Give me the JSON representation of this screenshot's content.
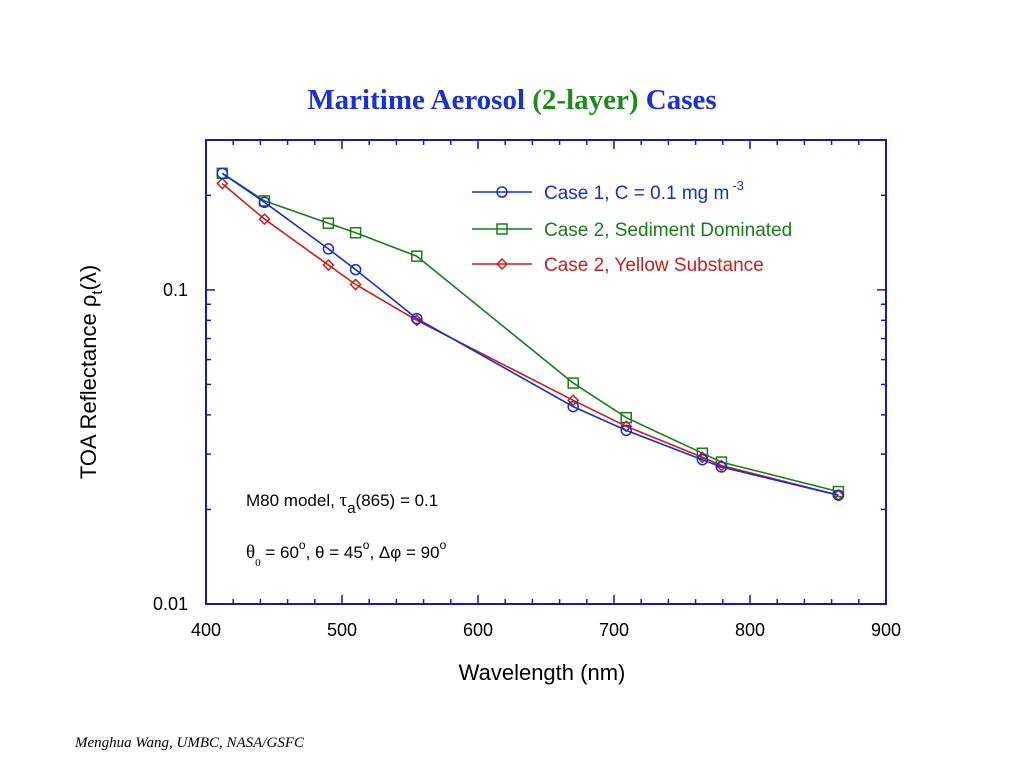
{
  "slide": {
    "title_parts": [
      "Maritime Aerosol",
      "(2-layer)",
      "Cases"
    ],
    "footer": "Menghua Wang, UMBC, NASA/GSFC"
  },
  "colors": {
    "axis_frame": "#1a1aa8",
    "title_blue": "#1a2fd6",
    "title_green": "#1e8a1e"
  },
  "chart_data": {
    "type": "line",
    "xlabel": "Wavelength (nm)",
    "ylabel_main": "TOA Reflectance ",
    "ylabel_rho": "ρ",
    "ylabel_sub": "t",
    "ylabel_lambda": "(λ)",
    "xlim": [
      400,
      900
    ],
    "ylim": [
      0.01,
      0.3
    ],
    "yscale": "log",
    "xticks": [
      400,
      500,
      600,
      700,
      800,
      900
    ],
    "xtick_labels": [
      "400",
      "500",
      "600",
      "700",
      "800",
      "900"
    ],
    "yticks_labeled": [
      0.01,
      0.1
    ],
    "ytick_labels": [
      "0.01",
      "0.1"
    ],
    "legend_position": "top-right",
    "series": [
      {
        "name": "Case 1, C = 0.1 mg m",
        "name_sup": "-3",
        "color": "#1a2fc8",
        "marker": "circle",
        "x": [
          412,
          443,
          490,
          510,
          555,
          670,
          709,
          765,
          779,
          865
        ],
        "y": [
          0.235,
          0.19,
          0.135,
          0.116,
          0.081,
          0.0425,
          0.0357,
          0.0288,
          0.0273,
          0.0222
        ]
      },
      {
        "name": "Case 2, Sediment Dominated",
        "color": "#1e7a1e",
        "marker": "square",
        "x": [
          412,
          443,
          490,
          510,
          555,
          670,
          709,
          765,
          779,
          865
        ],
        "y": [
          0.235,
          0.192,
          0.163,
          0.152,
          0.128,
          0.0505,
          0.0392,
          0.0302,
          0.0283,
          0.0228
        ]
      },
      {
        "name": "Case 2, Yellow Substance",
        "color": "#c81e1e",
        "marker": "diamond",
        "x": [
          412,
          443,
          490,
          510,
          555,
          670,
          709,
          765,
          779,
          865
        ],
        "y": [
          0.218,
          0.168,
          0.12,
          0.104,
          0.08,
          0.0445,
          0.0368,
          0.0293,
          0.0276,
          0.0222
        ]
      }
    ],
    "annotations": {
      "line1_prefix": "M80 model,  ",
      "tau": "τ",
      "tau_sub": "a",
      "line1_suffix": "(865)  =  0.1",
      "theta0": "θ",
      "theta0_sub": "0",
      "theta0_val": " = 60",
      "deg": "o",
      "theta_part": ",  θ  = 45",
      "dphi_part": ", Δφ  = 90"
    }
  }
}
